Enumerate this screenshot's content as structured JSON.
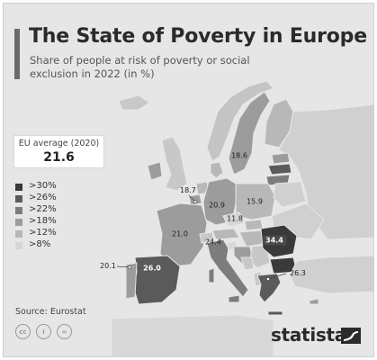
{
  "title": "The State of Poverty in Europe",
  "subtitle": "Share of people at risk of poverty or social exclusion in 2022 (in %)",
  "eu_average": {
    "label": "EU average (2020)",
    "value": "21.6"
  },
  "legend": [
    {
      "label": ">30%",
      "color": "#3a3a3a"
    },
    {
      "label": ">26%",
      "color": "#5a5a5a"
    },
    {
      "label": ">22%",
      "color": "#7c7c7c"
    },
    {
      "label": ">18%",
      "color": "#9c9c9c"
    },
    {
      "label": ">12%",
      "color": "#b8b8b8"
    },
    {
      "label": ">8%",
      "color": "#d6d6d6"
    }
  ],
  "values": {
    "sweden": "18.6",
    "belgium": "18.7",
    "germany": "20.9",
    "poland": "15.9",
    "czechia": "11.8",
    "france": "21.0",
    "italy": "24.4",
    "romania": "34.4",
    "portugal": "20.1",
    "spain": "26.0",
    "greece": "26.3"
  },
  "source": "Source: Eurostat",
  "brand": "statista",
  "license_icons": [
    "cc",
    "i",
    "="
  ]
}
